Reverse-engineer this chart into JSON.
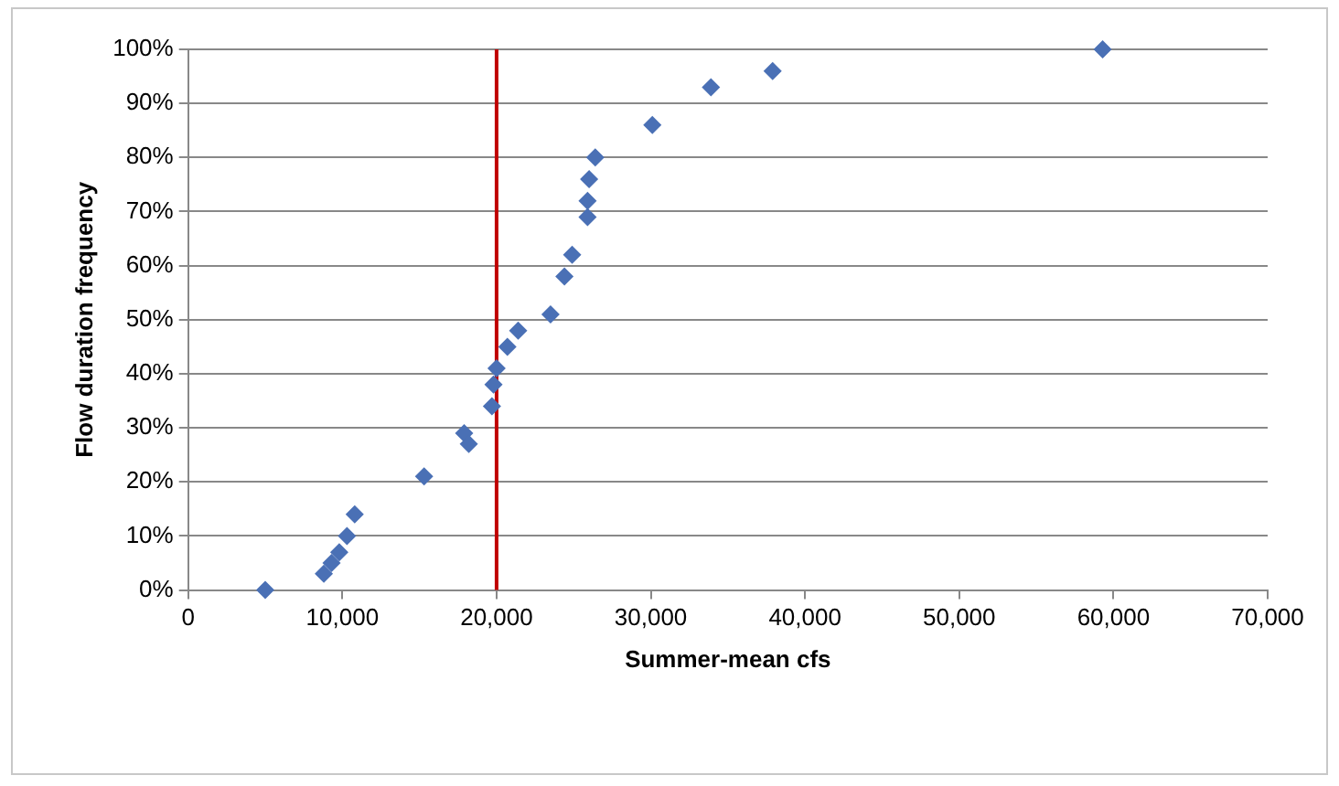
{
  "chart_data": {
    "type": "scatter",
    "xlabel": "Summer-mean cfs",
    "ylabel": "Flow duration frequency",
    "x": [
      5000,
      8800,
      9300,
      9800,
      10300,
      10800,
      15300,
      17900,
      18200,
      19700,
      19800,
      20000,
      20700,
      21400,
      23500,
      24400,
      24900,
      25900,
      25900,
      26000,
      26400,
      30100,
      33900,
      37900,
      59300
    ],
    "series": [
      {
        "color": "#4a70b5",
        "values": [
          0,
          3,
          5,
          7,
          10,
          14,
          21,
          29,
          27,
          34,
          38,
          41,
          45,
          48,
          51,
          58,
          62,
          69,
          72,
          76,
          80,
          86,
          93,
          96,
          100
        ]
      }
    ],
    "xlim": [
      0,
      70000
    ],
    "xticks": [
      0,
      {
        "value": 10000,
        "label": "10,000"
      },
      {
        "value": 20000,
        "label": "20,000"
      },
      {
        "value": 30000,
        "label": "30,000"
      },
      {
        "value": 40000,
        "label": "40,000"
      },
      {
        "value": 50000,
        "label": "50,000"
      },
      {
        "value": 60000,
        "label": "60,000"
      },
      {
        "value": 70000,
        "label": "70,000"
      }
    ],
    "ylim": [
      0,
      100
    ],
    "yticks": [
      {
        "value": 0,
        "label": "0%"
      },
      {
        "value": 10,
        "label": "10%"
      },
      {
        "value": 20,
        "label": "20%"
      },
      {
        "value": 30,
        "label": "30%"
      },
      {
        "value": 40,
        "label": "40%"
      },
      {
        "value": 50,
        "label": "50%"
      },
      {
        "value": 60,
        "label": "60%"
      },
      {
        "value": 70,
        "label": "70%"
      },
      {
        "value": 80,
        "label": "80%"
      },
      {
        "value": 90,
        "label": "90%"
      },
      {
        "value": 100,
        "label": "100%"
      }
    ],
    "ref_lines": [
      {
        "axis": "x",
        "value": 20000,
        "color": "#c00000"
      }
    ],
    "grid": "y",
    "legend": false,
    "marker": "diamond"
  }
}
